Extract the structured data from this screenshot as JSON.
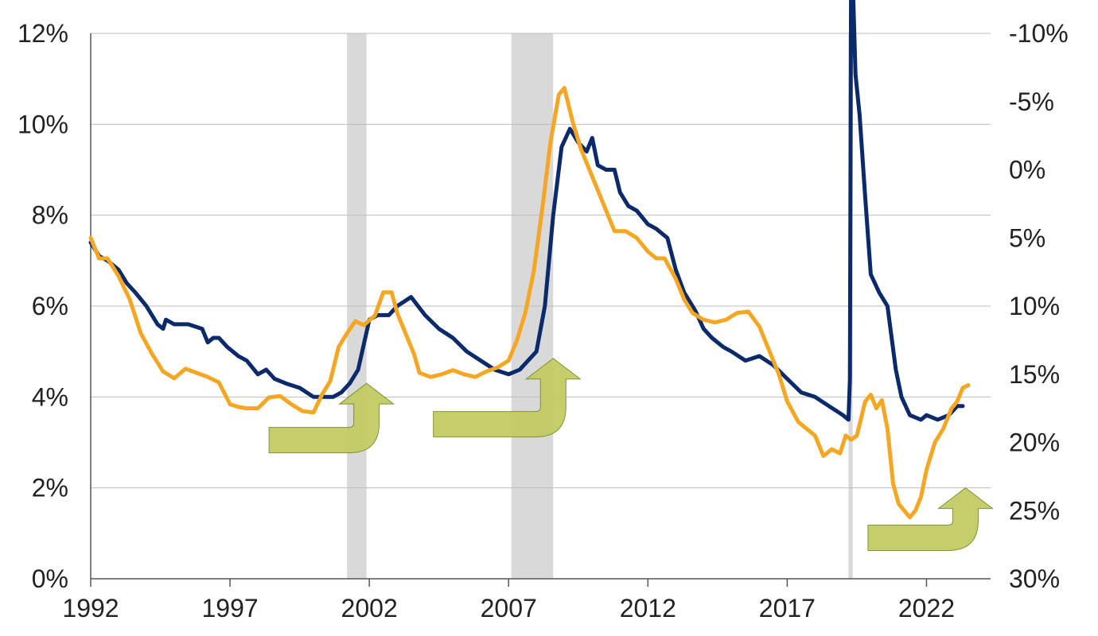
{
  "chart_data": {
    "type": "line",
    "title": "",
    "xlabel": "",
    "ylabel": "",
    "y2label": "",
    "x_range": [
      1992,
      2024.3
    ],
    "ylim": [
      0,
      12
    ],
    "y2lim": [
      30,
      -10
    ],
    "y2_inverted": true,
    "grid": true,
    "legend": "none",
    "x_ticks": [
      "1992",
      "1997",
      "2002",
      "2007",
      "2012",
      "2017",
      "2022"
    ],
    "y_ticks": [
      "0%",
      "2%",
      "4%",
      "6%",
      "8%",
      "10%",
      "12%"
    ],
    "y2_ticks": [
      "-10%",
      "-5%",
      "0%",
      "5%",
      "10%",
      "15%",
      "20%",
      "25%",
      "30%"
    ],
    "shaded_periods": [
      [
        2001.2,
        2001.9
      ],
      [
        2007.1,
        2008.6
      ],
      [
        2019.2,
        2019.35
      ]
    ],
    "arrows": [
      {
        "tail": [
          1998.4,
          3.05
        ],
        "tip": [
          2001.9,
          4.3
        ]
      },
      {
        "tail": [
          2004.3,
          3.4
        ],
        "tip": [
          2008.6,
          4.85
        ]
      },
      {
        "tail": [
          2019.9,
          0.9
        ],
        "tip": [
          2023.4,
          2.0
        ]
      }
    ],
    "colors": {
      "navy": "#0b2a6b",
      "orange": "#f5a623",
      "shade": "#d9d9d9",
      "arrow": "#c2cc63"
    },
    "series": [
      {
        "color": "#0b2a6b",
        "axis": "left",
        "x": [
          1992.0,
          1992.3,
          1992.6,
          1993.0,
          1993.3,
          1993.6,
          1994.0,
          1994.4,
          1994.6,
          1994.7,
          1995.0,
          1995.5,
          1996.0,
          1996.2,
          1996.4,
          1996.6,
          1996.9,
          1997.3,
          1997.6,
          1998.0,
          1998.3,
          1998.6,
          1999.0,
          1999.5,
          2000.0,
          2000.3,
          2000.7,
          2001.0,
          2001.3,
          2001.6,
          2002.0,
          2002.3,
          2002.7,
          2003.0,
          2003.5,
          2004.0,
          2004.5,
          2005.0,
          2005.5,
          2006.0,
          2006.5,
          2007.0,
          2007.4,
          2007.7,
          2008.0,
          2008.3,
          2008.6,
          2008.9,
          2009.2,
          2009.5,
          2009.8,
          2010.0,
          2010.2,
          2010.5,
          2010.8,
          2011.0,
          2011.3,
          2011.6,
          2012.0,
          2012.3,
          2012.7,
          2013.0,
          2013.3,
          2013.7,
          2014.0,
          2014.3,
          2014.7,
          2015.0,
          2015.5,
          2016.0,
          2016.5,
          2017.0,
          2017.5,
          2018.0,
          2018.5,
          2019.0,
          2019.2,
          2019.25,
          2019.3,
          2019.35,
          2019.45,
          2019.6,
          2019.8,
          2020.0,
          2020.3,
          2020.6,
          2020.9,
          2021.1,
          2021.4,
          2021.8,
          2022.0,
          2022.4,
          2022.8,
          2023.1,
          2023.3
        ],
        "y": [
          7.4,
          7.1,
          7.0,
          6.8,
          6.5,
          6.3,
          6.0,
          5.6,
          5.5,
          5.7,
          5.6,
          5.6,
          5.5,
          5.2,
          5.3,
          5.3,
          5.1,
          4.9,
          4.8,
          4.5,
          4.6,
          4.4,
          4.3,
          4.2,
          4.0,
          4.0,
          4.0,
          4.1,
          4.3,
          4.6,
          5.7,
          5.8,
          5.8,
          6.0,
          6.2,
          5.8,
          5.5,
          5.3,
          5.0,
          4.8,
          4.6,
          4.5,
          4.6,
          4.8,
          5.0,
          6.0,
          8.0,
          9.5,
          9.9,
          9.6,
          9.4,
          9.7,
          9.1,
          9.0,
          9.0,
          8.5,
          8.2,
          8.1,
          7.8,
          7.7,
          7.5,
          6.8,
          6.3,
          5.9,
          5.5,
          5.3,
          5.1,
          5.0,
          4.8,
          4.9,
          4.7,
          4.4,
          4.1,
          4.0,
          3.8,
          3.6,
          3.5,
          4.4,
          14.7,
          13.2,
          11.1,
          10.2,
          8.4,
          6.7,
          6.3,
          6.0,
          4.6,
          4.0,
          3.6,
          3.5,
          3.6,
          3.5,
          3.6,
          3.8,
          3.8
        ]
      },
      {
        "color": "#f5a623",
        "axis": "right",
        "x": [
          1992.0,
          1992.3,
          1992.6,
          1993.0,
          1993.4,
          1993.8,
          1994.2,
          1994.6,
          1995.0,
          1995.4,
          1995.8,
          1996.2,
          1996.6,
          1997.0,
          1997.3,
          1997.6,
          1998.0,
          1998.4,
          1998.8,
          1999.2,
          1999.6,
          2000.0,
          2000.3,
          2000.6,
          2000.9,
          2001.2,
          2001.5,
          2001.8,
          2002.2,
          2002.5,
          2002.8,
          2003.0,
          2003.3,
          2003.6,
          2003.8,
          2004.2,
          2004.6,
          2005.0,
          2005.4,
          2005.8,
          2006.2,
          2006.6,
          2007.0,
          2007.3,
          2007.6,
          2007.9,
          2008.2,
          2008.5,
          2008.8,
          2009.0,
          2009.3,
          2009.6,
          2009.9,
          2010.2,
          2010.5,
          2010.8,
          2011.2,
          2011.6,
          2012.0,
          2012.3,
          2012.6,
          2013.0,
          2013.3,
          2013.6,
          2014.0,
          2014.4,
          2014.8,
          2015.2,
          2015.6,
          2016.0,
          2016.3,
          2016.7,
          2017.0,
          2017.4,
          2017.7,
          2018.0,
          2018.3,
          2018.6,
          2018.9,
          2019.1,
          2019.3,
          2019.5,
          2019.8,
          2020.0,
          2020.2,
          2020.4,
          2020.6,
          2020.8,
          2021.0,
          2021.2,
          2021.4,
          2021.6,
          2021.8,
          2022.0,
          2022.3,
          2022.6,
          2022.9,
          2023.1,
          2023.3,
          2023.5
        ],
        "y": [
          5.0,
          6.5,
          6.5,
          7.8,
          9.5,
          12.0,
          13.5,
          14.8,
          15.3,
          14.6,
          14.9,
          15.2,
          15.6,
          17.2,
          17.4,
          17.5,
          17.5,
          16.7,
          16.6,
          17.2,
          17.7,
          17.8,
          16.5,
          15.5,
          13.0,
          12.0,
          11.1,
          11.4,
          10.7,
          9.0,
          9.0,
          10.5,
          12.0,
          13.5,
          14.9,
          15.2,
          15.0,
          14.7,
          15.0,
          15.2,
          14.8,
          14.5,
          14.0,
          12.5,
          10.5,
          7.5,
          3.0,
          -2.0,
          -5.5,
          -6.0,
          -3.5,
          -1.5,
          0.0,
          1.5,
          3.0,
          4.5,
          4.5,
          5.0,
          6.0,
          6.5,
          6.5,
          8.0,
          9.5,
          10.5,
          11.0,
          11.2,
          11.0,
          10.5,
          10.4,
          11.5,
          13.0,
          15.0,
          17.0,
          18.5,
          19.0,
          19.5,
          21.0,
          20.5,
          20.8,
          19.5,
          19.8,
          19.5,
          17.0,
          16.5,
          17.5,
          16.9,
          19.0,
          23.0,
          24.5,
          25.0,
          25.5,
          25.0,
          24.0,
          22.0,
          20.0,
          19.0,
          17.5,
          17.0,
          16.0,
          15.8
        ]
      }
    ]
  }
}
